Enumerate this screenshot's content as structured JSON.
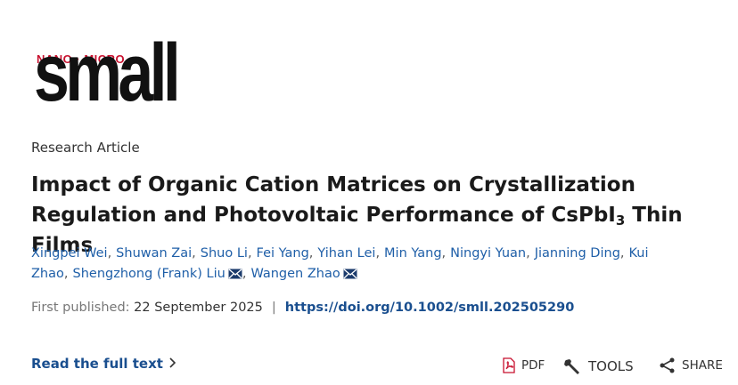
{
  "journal": {
    "tagline": "NANO · MICRO",
    "name": "small"
  },
  "article_type": "Research Article",
  "title": {
    "main": "Impact of Organic Cation Matrices on Crystallization Regulation and Photovoltaic Performance of CsPbI",
    "subscript": "3",
    "tail": " Thin Films"
  },
  "authors": {
    "names": [
      "Xingpei Wei",
      "Shuwan Zai",
      "Shuo Li",
      "Fei Yang",
      "Yihan Lei",
      "Min Yang",
      "Ningyi Yuan",
      "Jianning Ding",
      "Kui Zhao",
      "Shengzhong (Frank) Liu",
      "Wangen Zhao"
    ],
    "separator": ",",
    "corresponding": [
      9,
      10
    ]
  },
  "publication": {
    "label": "First published:",
    "date": "22 September 2025",
    "divider": "|",
    "doi": "https://doi.org/10.1002/smll.202505290"
  },
  "actions": {
    "read": "Read the full text",
    "pdf": "PDF",
    "tools": "TOOLS",
    "share": "SHARE"
  }
}
